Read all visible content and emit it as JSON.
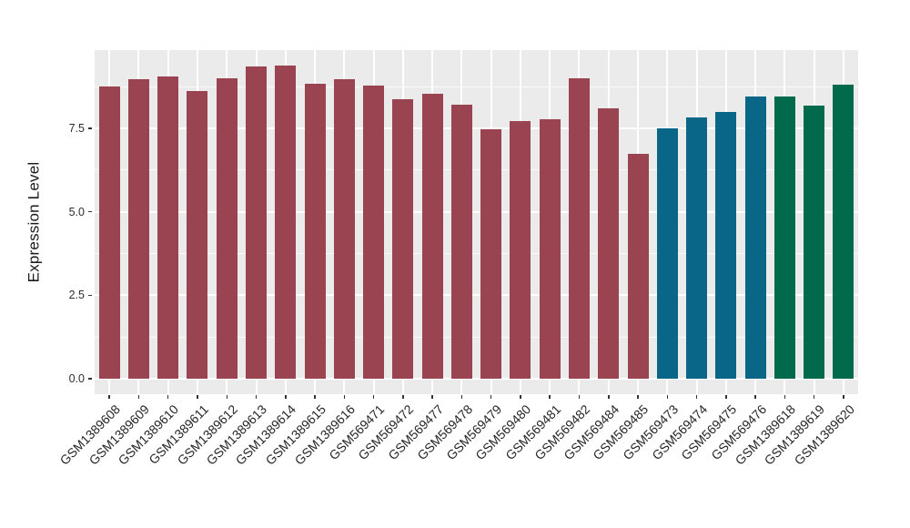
{
  "chart_data": {
    "type": "bar",
    "title": "",
    "xlabel": "",
    "ylabel": "Expression Level",
    "legend": "none",
    "grid": "on",
    "panel_bg": "#EBEBEB",
    "grid_color": "#FFFFFF",
    "axis_text_color": "#2E2E2E",
    "ylim": [
      -0.47,
      9.85
    ],
    "ytick_values": [
      0.0,
      2.5,
      5.0,
      7.5
    ],
    "ytick_labels": [
      "0.0",
      "2.5",
      "5.0",
      "7.5"
    ],
    "yminor_values": [
      1.25,
      3.75,
      6.25,
      8.75
    ],
    "group_colors": {
      "group1": "#9A4452",
      "group2": "#0A6687",
      "group3": "#026A4C"
    },
    "bars": [
      {
        "label": "GSM1389608",
        "value": 8.77,
        "group": "group1"
      },
      {
        "label": "GSM1389609",
        "value": 8.98,
        "group": "group1"
      },
      {
        "label": "GSM1389610",
        "value": 9.06,
        "group": "group1"
      },
      {
        "label": "GSM1389611",
        "value": 8.63,
        "group": "group1"
      },
      {
        "label": "GSM1389612",
        "value": 9.0,
        "group": "group1"
      },
      {
        "label": "GSM1389613",
        "value": 9.35,
        "group": "group1"
      },
      {
        "label": "GSM1389614",
        "value": 9.38,
        "group": "group1"
      },
      {
        "label": "GSM1389615",
        "value": 8.83,
        "group": "group1"
      },
      {
        "label": "GSM1389616",
        "value": 8.98,
        "group": "group1"
      },
      {
        "label": "GSM569471",
        "value": 8.78,
        "group": "group1"
      },
      {
        "label": "GSM569472",
        "value": 8.37,
        "group": "group1"
      },
      {
        "label": "GSM569477",
        "value": 8.53,
        "group": "group1"
      },
      {
        "label": "GSM569478",
        "value": 8.22,
        "group": "group1"
      },
      {
        "label": "GSM569479",
        "value": 7.48,
        "group": "group1"
      },
      {
        "label": "GSM569480",
        "value": 7.73,
        "group": "group1"
      },
      {
        "label": "GSM569481",
        "value": 7.79,
        "group": "group1"
      },
      {
        "label": "GSM569482",
        "value": 9.0,
        "group": "group1"
      },
      {
        "label": "GSM569484",
        "value": 8.11,
        "group": "group1"
      },
      {
        "label": "GSM569485",
        "value": 6.74,
        "group": "group1"
      },
      {
        "label": "GSM569473",
        "value": 7.5,
        "group": "group2"
      },
      {
        "label": "GSM569474",
        "value": 7.83,
        "group": "group2"
      },
      {
        "label": "GSM569475",
        "value": 8.0,
        "group": "group2"
      },
      {
        "label": "GSM569476",
        "value": 8.46,
        "group": "group2"
      },
      {
        "label": "GSM1389618",
        "value": 8.45,
        "group": "group3"
      },
      {
        "label": "GSM1389619",
        "value": 8.19,
        "group": "group3"
      },
      {
        "label": "GSM1389620",
        "value": 8.82,
        "group": "group3"
      }
    ]
  }
}
